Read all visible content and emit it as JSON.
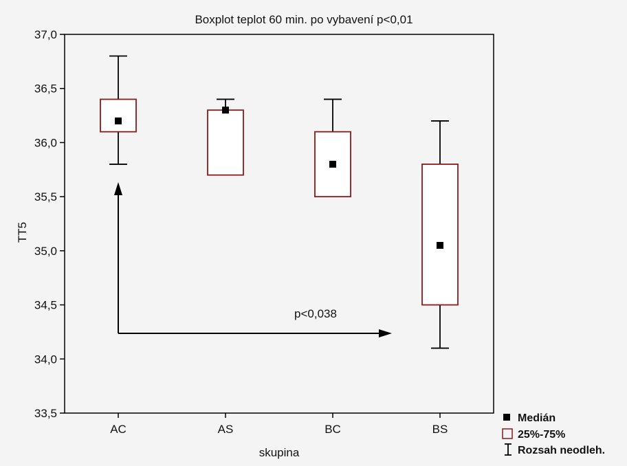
{
  "chart_data": {
    "type": "boxplot",
    "title": "Boxplot teplot 60 min. po vybavení p<0,01",
    "xlabel": "skupina",
    "ylabel": "TT5",
    "ylim": [
      33.5,
      37.0
    ],
    "yticks": [
      "37,0",
      "36,5",
      "36,0",
      "35,5",
      "35,0",
      "34,5",
      "34,0",
      "33,5"
    ],
    "ytick_values": [
      37.0,
      36.5,
      36.0,
      35.5,
      35.0,
      34.5,
      34.0,
      33.5
    ],
    "categories": [
      "AC",
      "AS",
      "BC",
      "BS"
    ],
    "boxes": [
      {
        "category": "AC",
        "median": 36.2,
        "q1": 36.1,
        "q3": 36.4,
        "min": 35.8,
        "max": 36.8
      },
      {
        "category": "AS",
        "median": 36.3,
        "q1": 35.7,
        "q3": 36.3,
        "min": 35.7,
        "max": 36.4
      },
      {
        "category": "BC",
        "median": 35.8,
        "q1": 35.5,
        "q3": 36.1,
        "min": 35.5,
        "max": 36.4
      },
      {
        "category": "BS",
        "median": 35.05,
        "q1": 34.5,
        "q3": 35.8,
        "min": 34.1,
        "max": 36.2
      }
    ],
    "legend": [
      {
        "symbol": "square",
        "label": "Medián"
      },
      {
        "symbol": "box",
        "label": "25%-75%"
      },
      {
        "symbol": "whisker",
        "label": "Rozsah neodleh."
      }
    ],
    "legend_position": "bottom-right",
    "annotation": {
      "text": "p<0,038",
      "from": "AC",
      "to": "BS"
    },
    "grid": false,
    "colors": {
      "box": "#8b1a1a",
      "median": "#000000",
      "axis": "#000000",
      "background": "#f4f4f4"
    }
  }
}
